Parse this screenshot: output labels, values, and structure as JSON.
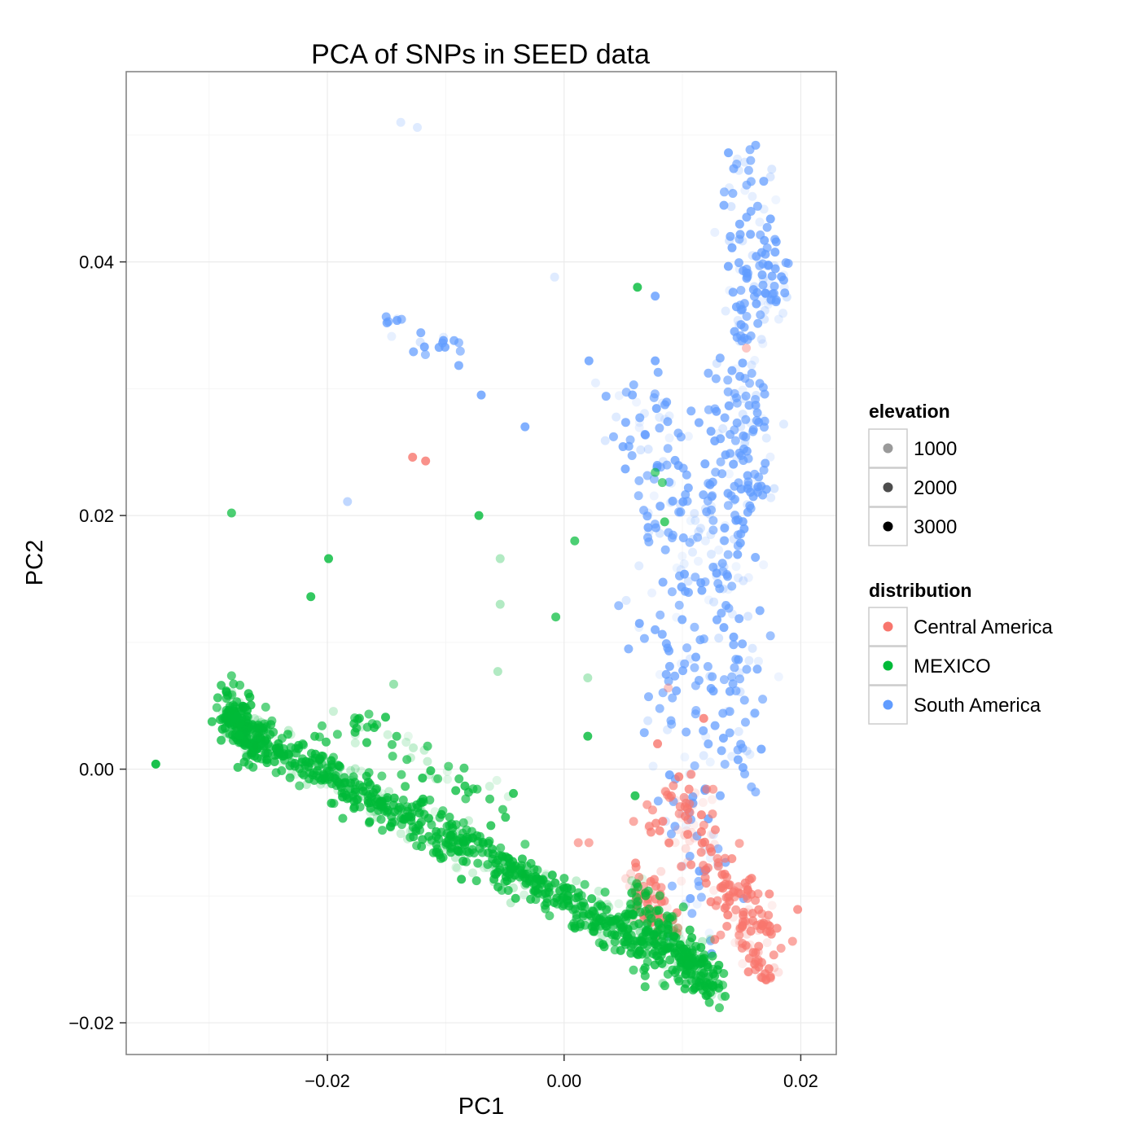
{
  "chart_data": {
    "type": "scatter",
    "title": "PCA of SNPs in SEED data",
    "xlabel": "PC1",
    "ylabel": "PC2",
    "xlim": [
      -0.037,
      0.023
    ],
    "ylim": [
      -0.0225,
      0.055
    ],
    "x_ticks": [
      -0.02,
      0.0,
      0.02
    ],
    "x_tick_labels": [
      "−0.02",
      "0.00",
      "0.02"
    ],
    "y_ticks": [
      -0.02,
      0.0,
      0.02,
      0.04
    ],
    "y_tick_labels": [
      "−0.02",
      "0.00",
      "0.02",
      "0.04"
    ],
    "grid": true,
    "legend_position": "right",
    "legends": {
      "elevation": {
        "title": "elevation",
        "items": [
          {
            "label": "1000",
            "color": "#9a9a9a"
          },
          {
            "label": "2000",
            "color": "#4d4d4d"
          },
          {
            "label": "3000",
            "color": "#000000"
          }
        ]
      },
      "distribution": {
        "title": "distribution",
        "items": [
          {
            "label": "Central America",
            "color": "#F8766D"
          },
          {
            "label": "MEXICO",
            "color": "#00BA38"
          },
          {
            "label": "South America",
            "color": "#619CFF"
          }
        ]
      }
    },
    "series": [
      {
        "name": "MEXICO",
        "color": "#00BA38",
        "points": [
          {
            "x": -0.0345,
            "y": 0.0004,
            "a": 0.9
          },
          {
            "x": -0.0281,
            "y": 0.0202,
            "a": 0.7
          },
          {
            "x": -0.0199,
            "y": 0.0166,
            "a": 0.8
          },
          {
            "x": -0.0214,
            "y": 0.0136,
            "a": 0.8
          },
          {
            "x": -0.0072,
            "y": 0.02,
            "a": 0.8
          },
          {
            "x": -0.0054,
            "y": 0.0166,
            "a": 0.3
          },
          {
            "x": -0.0054,
            "y": 0.013,
            "a": 0.3
          },
          {
            "x": -0.0007,
            "y": 0.012,
            "a": 0.7
          },
          {
            "x": 0.0009,
            "y": 0.018,
            "a": 0.7
          },
          {
            "x": 0.0062,
            "y": 0.038,
            "a": 0.8
          },
          {
            "x": 0.0085,
            "y": 0.0195,
            "a": 0.7
          },
          {
            "x": 0.0077,
            "y": 0.0234,
            "a": 0.6
          },
          {
            "x": 0.0083,
            "y": 0.0226,
            "a": 0.6
          },
          {
            "x": -0.0144,
            "y": 0.0067,
            "a": 0.4
          },
          {
            "x": -0.0056,
            "y": 0.0077,
            "a": 0.3
          },
          {
            "x": 0.002,
            "y": 0.0072,
            "a": 0.3
          },
          {
            "x": 0.002,
            "y": 0.0026,
            "a": 0.8
          },
          {
            "x": 0.006,
            "y": -0.0021,
            "a": 0.8
          }
        ],
        "clusters": [
          {
            "x0": -0.0285,
            "y0": 0.0055,
            "x1": -0.026,
            "y1": 0.0015,
            "n": 160,
            "sx": 0.0007,
            "sy": 0.0009
          },
          {
            "x0": -0.028,
            "y0": 0.0035,
            "x1": 0.0125,
            "y1": -0.0165,
            "n": 900,
            "sx": 0.0007,
            "sy": 0.0009
          },
          {
            "x0": -0.02,
            "y0": 0.0045,
            "x1": -0.004,
            "y1": -0.004,
            "n": 60,
            "sx": 0.0012,
            "sy": 0.001
          },
          {
            "x0": 0.006,
            "y0": -0.0095,
            "x1": 0.013,
            "y1": -0.018,
            "n": 120,
            "sx": 0.0007,
            "sy": 0.0008
          }
        ]
      },
      {
        "name": "South America",
        "color": "#619CFF",
        "points": [
          {
            "x": -0.0141,
            "y": 0.0355,
            "a": 0.2
          },
          {
            "x": -0.0118,
            "y": 0.0333,
            "a": 0.8
          },
          {
            "x": -0.0102,
            "y": 0.0338,
            "a": 0.8
          },
          {
            "x": -0.007,
            "y": 0.0295,
            "a": 0.8
          },
          {
            "x": -0.0033,
            "y": 0.027,
            "a": 0.8
          },
          {
            "x": -0.0183,
            "y": 0.0211,
            "a": 0.4
          },
          {
            "x": 0.0021,
            "y": 0.0322,
            "a": 0.8
          },
          {
            "x": 0.0077,
            "y": 0.0322,
            "a": 0.8
          },
          {
            "x": 0.0077,
            "y": 0.0373,
            "a": 0.8
          },
          {
            "x": -0.0138,
            "y": 0.051,
            "a": 0.2
          },
          {
            "x": -0.0124,
            "y": 0.0506,
            "a": 0.2
          },
          {
            "x": -0.0008,
            "y": 0.0388,
            "a": 0.2
          },
          {
            "x": 0.0115,
            "y": 0.0102,
            "a": 0.7
          },
          {
            "x": 0.0114,
            "y": 0.007,
            "a": 0.7
          }
        ],
        "clusters": [
          {
            "x0": 0.015,
            "y0": 0.048,
            "x1": 0.016,
            "y1": 0.02,
            "n": 160,
            "sx": 0.0012,
            "sy": 0.001
          },
          {
            "x0": 0.0175,
            "y0": 0.041,
            "x1": 0.0175,
            "y1": 0.036,
            "n": 40,
            "sx": 0.0006,
            "sy": 0.0008
          },
          {
            "x0": 0.0135,
            "y0": 0.03,
            "x1": 0.0145,
            "y1": 0.0,
            "n": 140,
            "sx": 0.0015,
            "sy": 0.0012
          },
          {
            "x0": 0.0065,
            "y0": 0.03,
            "x1": 0.0115,
            "y1": 0.014,
            "n": 140,
            "sx": 0.0022,
            "sy": 0.0015
          },
          {
            "x0": 0.0075,
            "y0": 0.013,
            "x1": 0.0125,
            "y1": -0.013,
            "n": 90,
            "sx": 0.0015,
            "sy": 0.0012
          },
          {
            "x0": -0.0145,
            "y0": 0.0345,
            "x1": -0.0095,
            "y1": 0.033,
            "n": 18,
            "sx": 0.0012,
            "sy": 0.0007
          }
        ]
      },
      {
        "name": "Central America",
        "color": "#F8766D",
        "points": [
          {
            "x": -0.0128,
            "y": 0.0246,
            "a": 0.8
          },
          {
            "x": -0.0117,
            "y": 0.0243,
            "a": 0.8
          },
          {
            "x": 0.0154,
            "y": 0.0332,
            "a": 0.4
          },
          {
            "x": 0.0118,
            "y": 0.004,
            "a": 0.8
          },
          {
            "x": 0.0088,
            "y": 0.0064,
            "a": 0.4
          },
          {
            "x": 0.0079,
            "y": 0.002,
            "a": 0.8
          },
          {
            "x": 0.0097,
            "y": -0.0006,
            "a": 0.8
          },
          {
            "x": 0.0072,
            "y": -0.0045,
            "a": 0.7
          },
          {
            "x": 0.0012,
            "y": -0.0058,
            "a": 0.6
          },
          {
            "x": 0.0021,
            "y": -0.0058,
            "a": 0.6
          }
        ],
        "clusters": [
          {
            "x0": 0.0065,
            "y0": -0.0085,
            "x1": 0.0085,
            "y1": -0.0125,
            "n": 60,
            "sx": 0.0008,
            "sy": 0.0009
          },
          {
            "x0": 0.009,
            "y0": -0.002,
            "x1": 0.0165,
            "y1": -0.0135,
            "n": 140,
            "sx": 0.0014,
            "sy": 0.0012
          },
          {
            "x0": 0.0145,
            "y0": -0.01,
            "x1": 0.017,
            "y1": -0.016,
            "n": 60,
            "sx": 0.0008,
            "sy": 0.0008
          }
        ]
      }
    ]
  }
}
